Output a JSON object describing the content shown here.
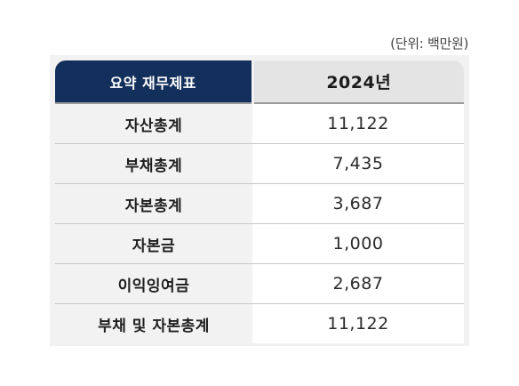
{
  "unit_note": "(단위: 백만원)",
  "table": {
    "header": {
      "label": "요약 재무제표",
      "year": "2024년"
    },
    "rows": [
      {
        "label": "자산총계",
        "value": "11,122"
      },
      {
        "label": "부채총계",
        "value": "7,435"
      },
      {
        "label": "자본총계",
        "value": "3,687"
      },
      {
        "label": "자본금",
        "value": "1,000"
      },
      {
        "label": "이익잉여금",
        "value": "2,687"
      },
      {
        "label": "부채 및 자본총계",
        "value": "11,122"
      }
    ]
  },
  "colors": {
    "header_navy": "#13305c",
    "header_gray": "#e4e4e4",
    "label_bg": "#f2f2f2",
    "value_bg": "#ffffff"
  }
}
